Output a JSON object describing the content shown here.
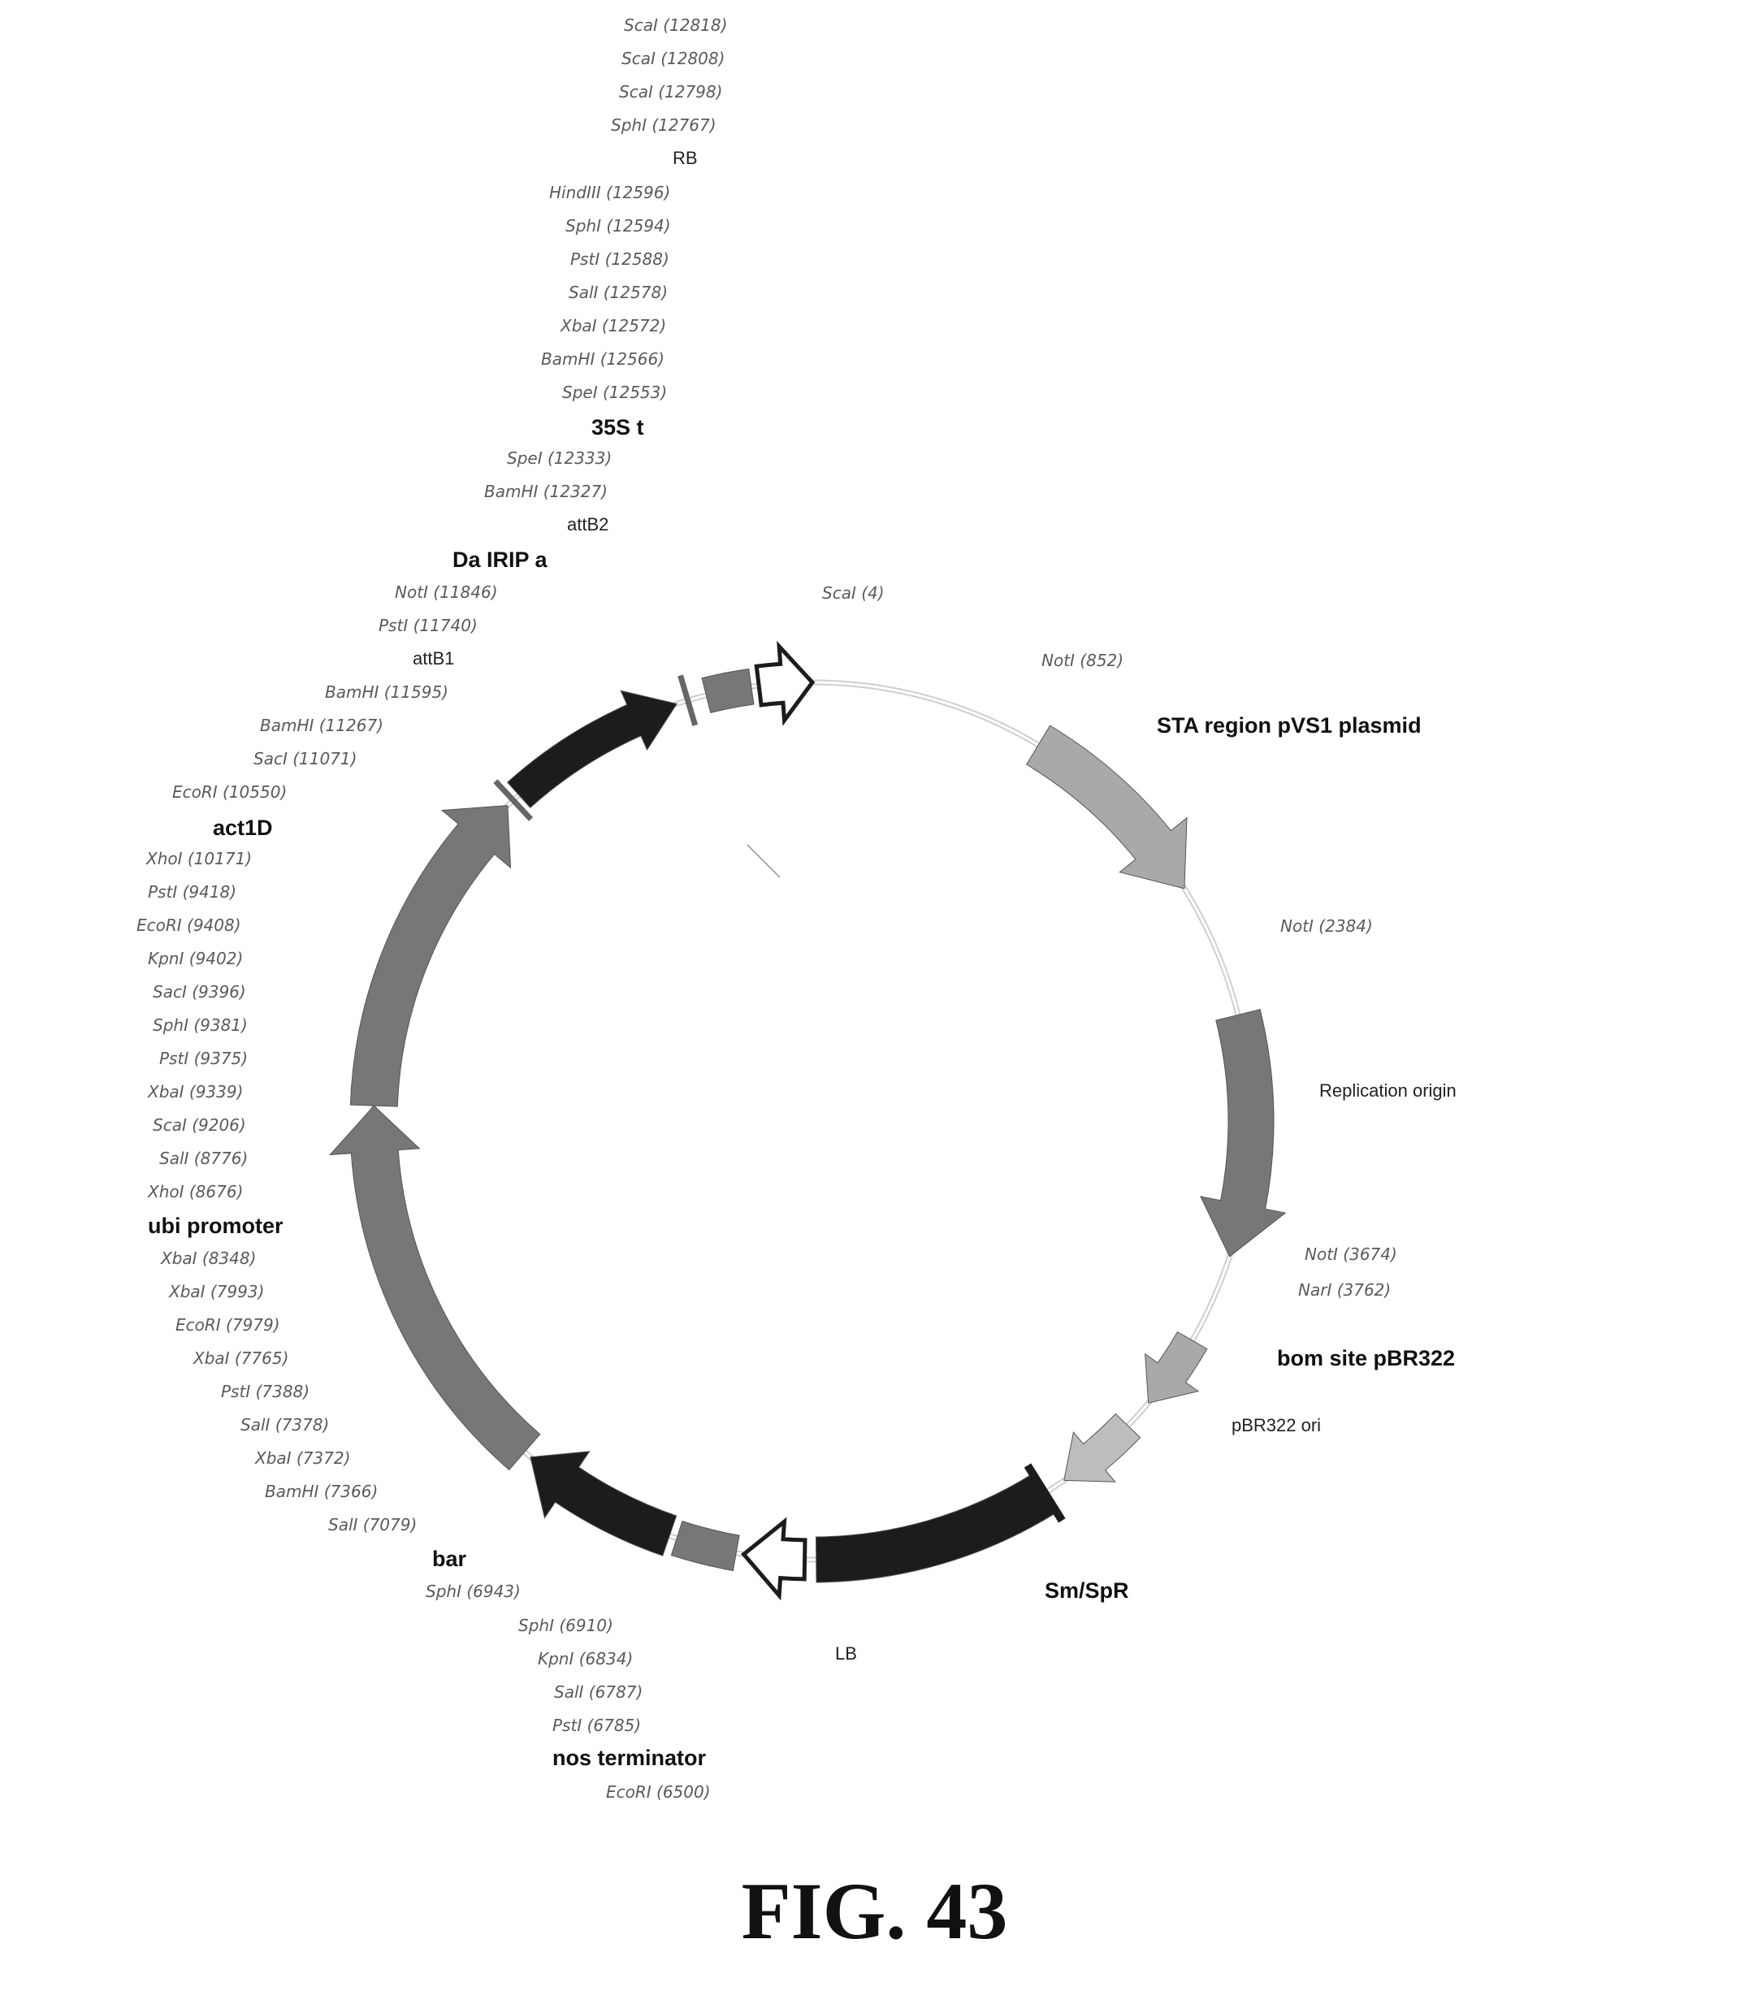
{
  "figure": {
    "caption": "FIG. 43"
  },
  "colors": {
    "backbone": "#cfcfcf",
    "dark": "#1c1c1c",
    "mid": "#777777",
    "light": "#a9a9a9",
    "lighter": "#bdbdbd"
  },
  "sites": [
    {
      "text": "ScaI (12818)"
    },
    {
      "text": "ScaI (12808)"
    },
    {
      "text": "ScaI (12798)"
    },
    {
      "text": "SphI (12767)"
    },
    {
      "text": "RB"
    },
    {
      "text": "HindIII (12596)"
    },
    {
      "text": "SphI (12594)"
    },
    {
      "text": "PstI (12588)"
    },
    {
      "text": "SalI (12578)"
    },
    {
      "text": "XbaI (12572)"
    },
    {
      "text": "BamHI (12566)"
    },
    {
      "text": "SpeI (12553)"
    },
    {
      "text": "35S t"
    },
    {
      "text": "SpeI (12333)"
    },
    {
      "text": "BamHI (12327)"
    },
    {
      "text": "attB2"
    },
    {
      "text": "Da IRIP a"
    },
    {
      "text": "NotI (11846)"
    },
    {
      "text": "PstI (11740)"
    },
    {
      "text": "attB1"
    },
    {
      "text": "BamHI (11595)"
    },
    {
      "text": "BamHI (11267)"
    },
    {
      "text": "SacI (11071)"
    },
    {
      "text": "EcoRI (10550)"
    },
    {
      "text": "act1D"
    },
    {
      "text": "XhoI (10171)"
    },
    {
      "text": "PstI (9418)"
    },
    {
      "text": "EcoRI (9408)"
    },
    {
      "text": "KpnI (9402)"
    },
    {
      "text": "SacI (9396)"
    },
    {
      "text": "SphI (9381)"
    },
    {
      "text": "PstI (9375)"
    },
    {
      "text": "XbaI (9339)"
    },
    {
      "text": "ScaI (9206)"
    },
    {
      "text": "SalI (8776)"
    },
    {
      "text": "XhoI (8676)"
    },
    {
      "text": "ubi promoter"
    },
    {
      "text": "XbaI (8348)"
    },
    {
      "text": "XbaI (7993)"
    },
    {
      "text": "EcoRI (7979)"
    },
    {
      "text": "XbaI (7765)"
    },
    {
      "text": "PstI (7388)"
    },
    {
      "text": "SalI (7378)"
    },
    {
      "text": "XbaI (7372)"
    },
    {
      "text": "BamHI (7366)"
    },
    {
      "text": "SalI (7079)"
    },
    {
      "text": "bar"
    },
    {
      "text": "SphI (6943)"
    },
    {
      "text": "SphI (6910)"
    },
    {
      "text": "KpnI (6834)"
    },
    {
      "text": "SalI (6787)"
    },
    {
      "text": "PstI (6785)"
    },
    {
      "text": "nos terminator"
    },
    {
      "text": "EcoRI (6500)"
    },
    {
      "text": "ScaI (4)"
    },
    {
      "text": "NotI (852)"
    },
    {
      "text": "STA region pVS1 plasmid"
    },
    {
      "text": "NotI (2384)"
    },
    {
      "text": "Replication origin"
    },
    {
      "text": "NotI (3674)"
    },
    {
      "text": "NarI (3762)"
    },
    {
      "text": "bom site pBR322"
    },
    {
      "text": "pBR322 ori"
    },
    {
      "text": "Sm/SpR"
    },
    {
      "text": "LB"
    }
  ]
}
